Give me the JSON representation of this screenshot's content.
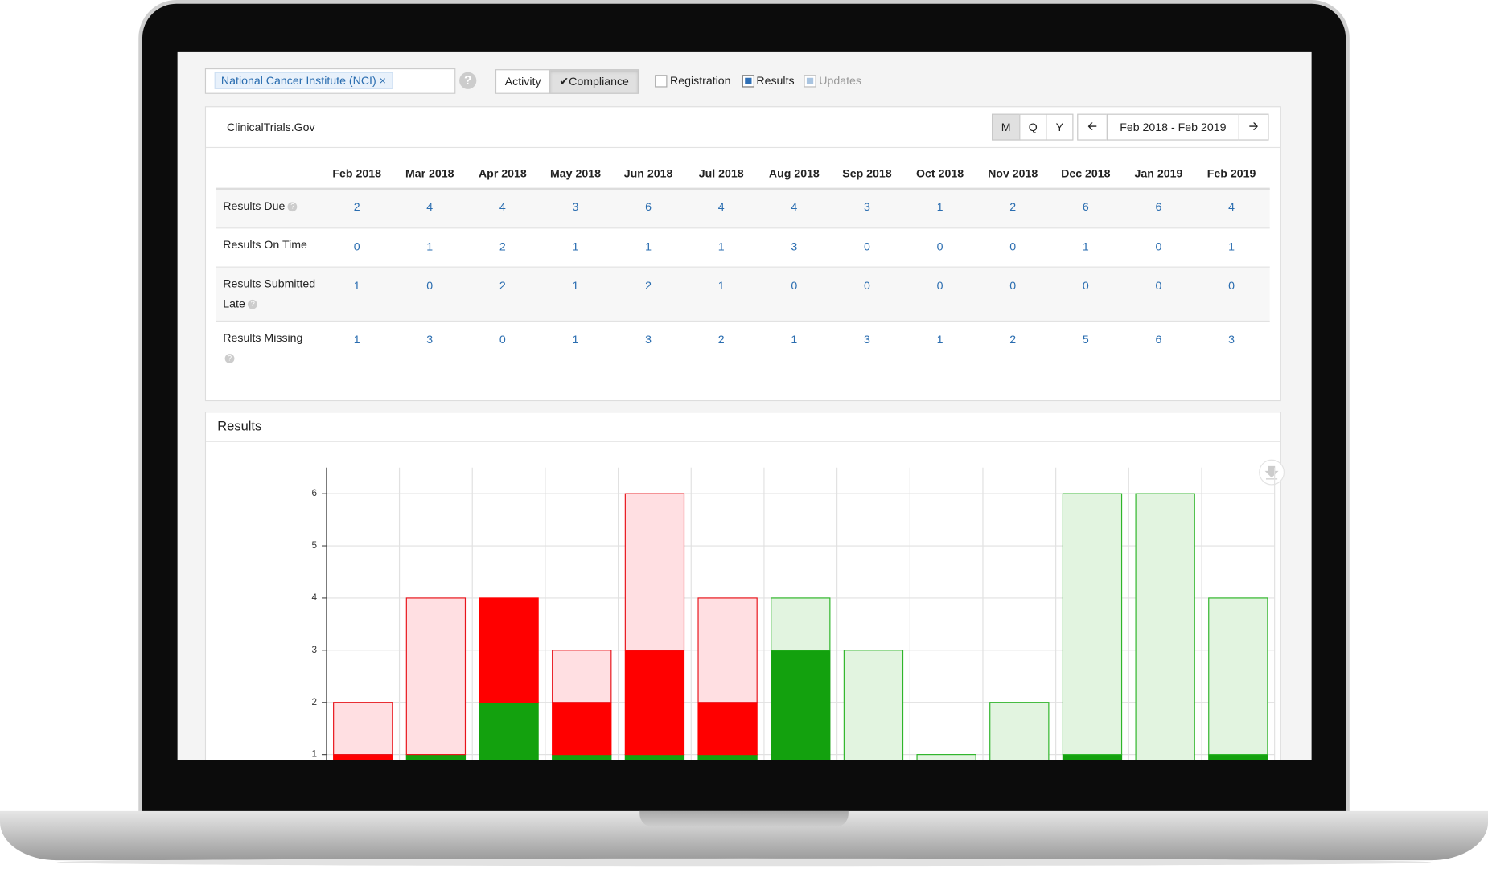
{
  "filter": {
    "tag": "National Cancer Institute (NCI)",
    "tag_remove": "×",
    "help": "?"
  },
  "toggles": [
    "Activity",
    "Compliance"
  ],
  "checkboxes": [
    "Registration",
    "Results",
    "Updates"
  ],
  "panel": {
    "title": "ClinicalTrials.Gov",
    "periods": [
      "M",
      "Q",
      "Y"
    ],
    "range": "Feb 2018 - Feb 2019"
  },
  "table": {
    "columns": [
      "Feb 2018",
      "Mar 2018",
      "Apr 2018",
      "May 2018",
      "Jun 2018",
      "Jul 2018",
      "Aug 2018",
      "Sep 2018",
      "Oct 2018",
      "Nov 2018",
      "Dec 2018",
      "Jan 2019",
      "Feb 2019"
    ],
    "rows": [
      {
        "label": "Results Due",
        "values": [
          2,
          4,
          4,
          3,
          6,
          4,
          4,
          3,
          1,
          2,
          6,
          6,
          4
        ]
      },
      {
        "label": "Results On Time",
        "values": [
          0,
          1,
          2,
          1,
          1,
          1,
          3,
          0,
          0,
          0,
          1,
          0,
          1
        ]
      },
      {
        "label": "Results Submitted Late",
        "values": [
          1,
          0,
          2,
          1,
          2,
          1,
          0,
          0,
          0,
          0,
          0,
          0,
          0
        ]
      },
      {
        "label": "Results Missing",
        "values": [
          1,
          3,
          0,
          1,
          3,
          2,
          1,
          3,
          1,
          2,
          5,
          6,
          3
        ]
      }
    ]
  },
  "chart_data": {
    "type": "stacked_bar",
    "title": "Results",
    "ylim": [
      0,
      6.5
    ],
    "yticks": [
      1,
      2,
      3,
      4,
      5,
      6
    ],
    "grid": true,
    "series": [
      {
        "color": "#13a10e",
        "values": [
          0,
          1,
          2,
          1,
          1,
          1,
          3,
          0,
          0,
          0,
          1,
          0,
          1
        ]
      },
      {
        "color": "#ff0000",
        "values": [
          1,
          0,
          2,
          1,
          2,
          1,
          0,
          0,
          0,
          0,
          0,
          0,
          0
        ]
      },
      {
        "colors": [
          "#ffdfe2",
          "#ffdfe2",
          "#ffdfe2",
          "#ffdfe2",
          "#ffdfe2",
          "#ffdfe2",
          "#e2f4e0",
          "#e2f4e0",
          "#e2f4e0",
          "#e2f4e0",
          "#e2f4e0",
          "#e2f4e0",
          "#e2f4e0"
        ],
        "edge_colors": [
          "#e8141b",
          "#e8141b",
          "#e8141b",
          "#e8141b",
          "#e8141b",
          "#e8141b",
          "#2fb52a",
          "#2fb52a",
          "#2fb52a",
          "#2fb52a",
          "#2fb52a",
          "#2fb52a",
          "#2fb52a"
        ],
        "values": [
          1,
          3,
          0,
          1,
          3,
          2,
          1,
          3,
          1,
          2,
          5,
          6,
          3
        ]
      }
    ]
  }
}
